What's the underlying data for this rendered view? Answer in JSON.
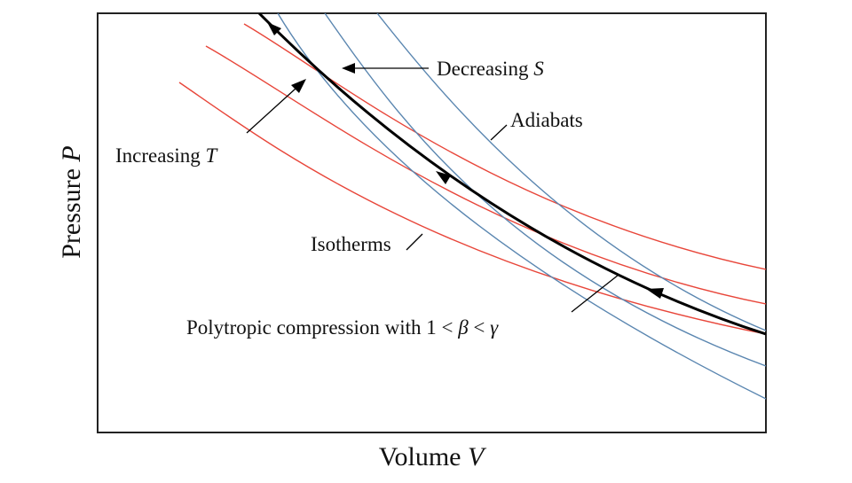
{
  "figure": {
    "xlabel": {
      "text": "Volume ",
      "var": "V"
    },
    "ylabel": {
      "text": "Pressure ",
      "var": "P"
    }
  },
  "labels": {
    "decreasing_s": {
      "text": "Decreasing ",
      "var": "S"
    },
    "increasing_t": {
      "text": "Increasing ",
      "var": "T"
    },
    "adiabats": "Adiabats",
    "isotherms": "Isotherms",
    "polytropic": {
      "text": "Polytropic compression with 1 < ",
      "beta": "β",
      "lt": " < ",
      "gamma": "γ"
    }
  },
  "colors": {
    "isotherm": "#e8463a",
    "adiabat": "#5a86b0",
    "process": "#000000",
    "frame": "#222222"
  }
}
